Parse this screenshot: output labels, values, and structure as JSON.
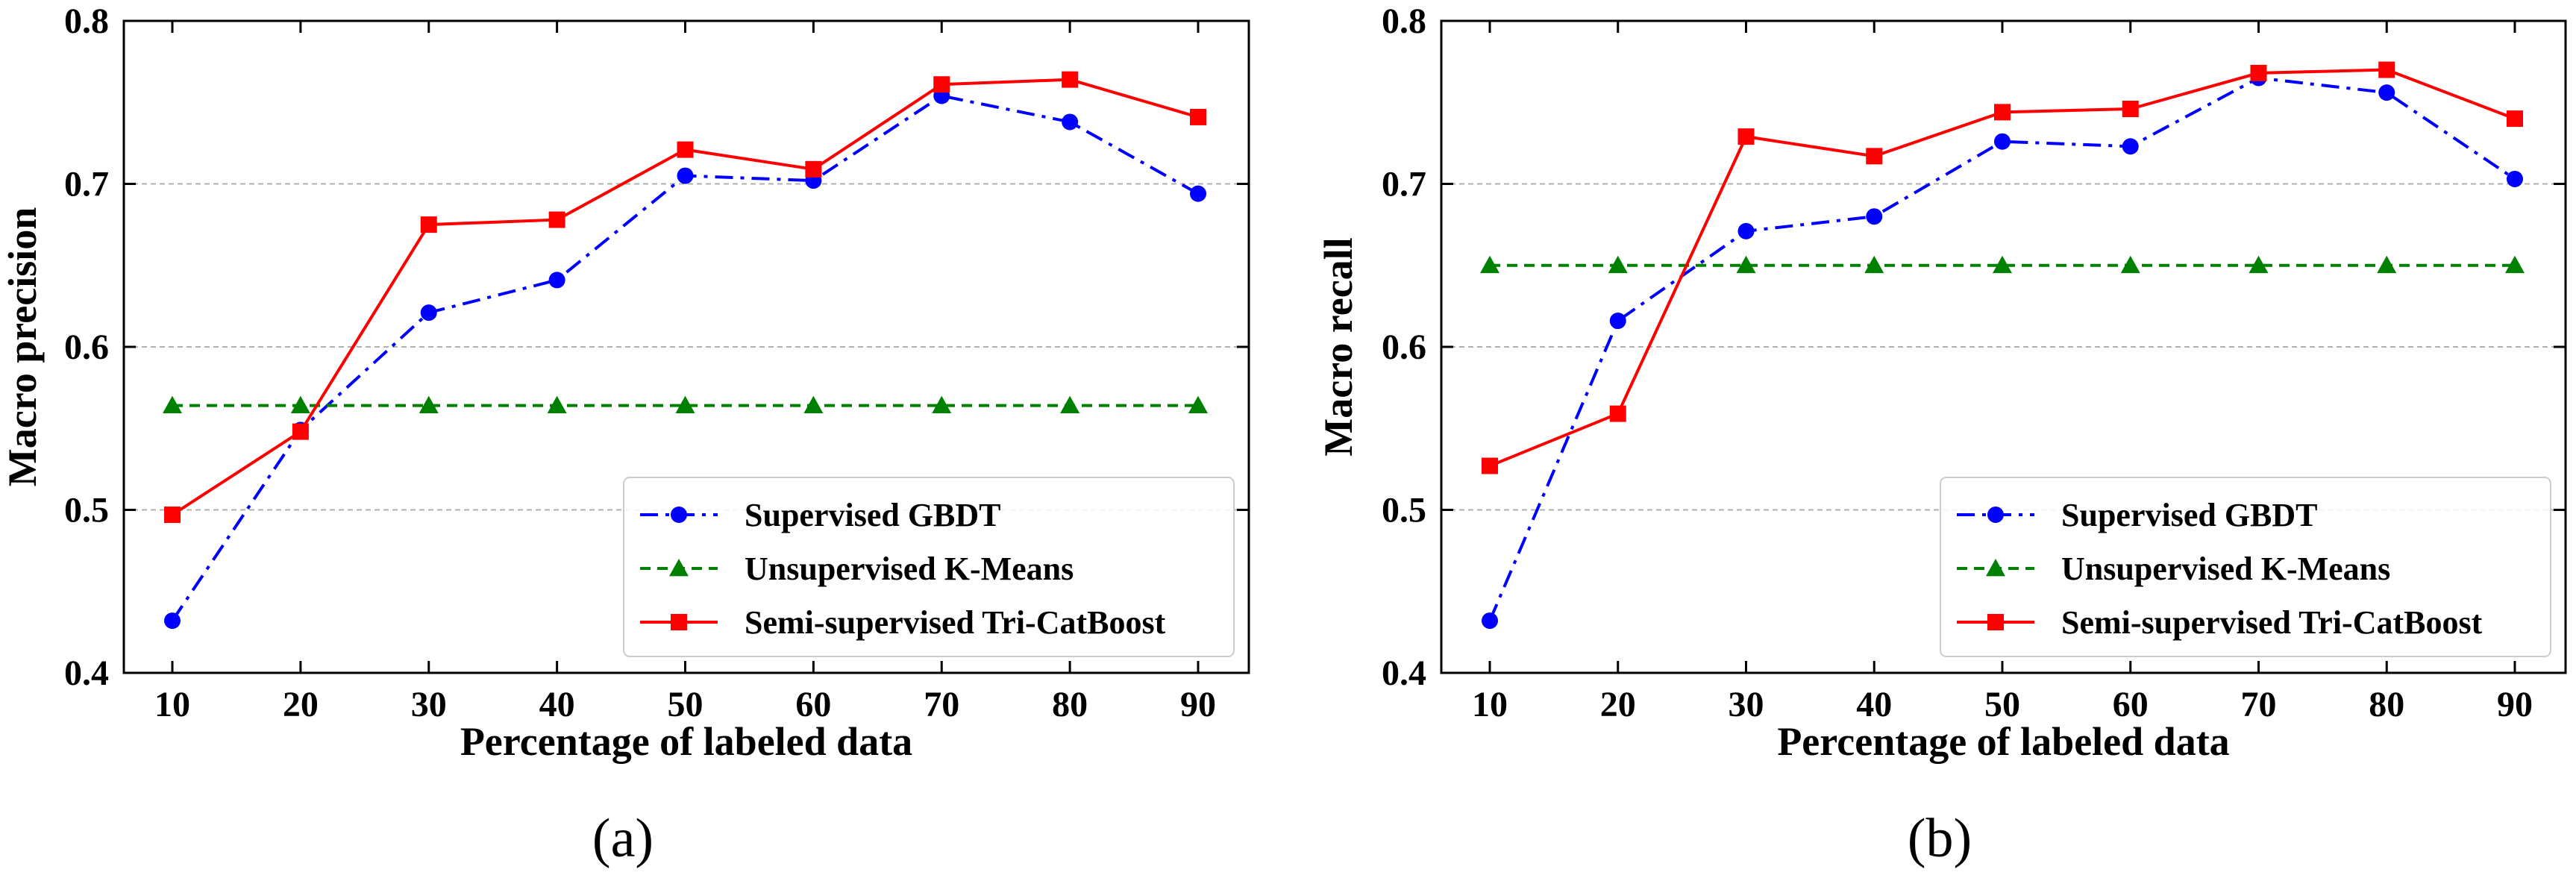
{
  "chart_data": [
    {
      "type": "line",
      "subcaption": "(a)",
      "xlabel": "Percentage of labeled data",
      "ylabel": "Macro precision",
      "x": [
        10,
        20,
        30,
        40,
        50,
        60,
        70,
        80,
        90
      ],
      "ylim": [
        0.4,
        0.8
      ],
      "yticks": [
        "0.4",
        "0.5",
        "0.6",
        "0.7",
        "0.8"
      ],
      "xticks": [
        "10",
        "20",
        "30",
        "40",
        "50",
        "60",
        "70",
        "80",
        "90"
      ],
      "grid": "horizontal",
      "legend_position": "lower-right",
      "series": [
        {
          "name": "Supervised GBDT",
          "color": "#0000ff",
          "style": "dashdot",
          "marker": "circle",
          "values": [
            0.432,
            0.549,
            0.621,
            0.641,
            0.705,
            0.702,
            0.754,
            0.738,
            0.694
          ]
        },
        {
          "name": "Unsupervised K-Means",
          "color": "#008000",
          "style": "dashed",
          "marker": "triangle",
          "values": [
            0.564,
            0.564,
            0.564,
            0.564,
            0.564,
            0.564,
            0.564,
            0.564,
            0.564
          ]
        },
        {
          "name": "Semi-supervised Tri-CatBoost",
          "color": "#ff0000",
          "style": "solid",
          "marker": "square",
          "values": [
            0.497,
            0.548,
            0.675,
            0.678,
            0.721,
            0.709,
            0.761,
            0.764,
            0.741
          ]
        }
      ]
    },
    {
      "type": "line",
      "subcaption": "(b)",
      "xlabel": "Percentage of labeled data",
      "ylabel": "Macro recall",
      "x": [
        10,
        20,
        30,
        40,
        50,
        60,
        70,
        80,
        90
      ],
      "ylim": [
        0.4,
        0.8
      ],
      "yticks": [
        "0.4",
        "0.5",
        "0.6",
        "0.7",
        "0.8"
      ],
      "xticks": [
        "10",
        "20",
        "30",
        "40",
        "50",
        "60",
        "70",
        "80",
        "90"
      ],
      "grid": "horizontal",
      "legend_position": "lower-right",
      "series": [
        {
          "name": "Supervised GBDT",
          "color": "#0000ff",
          "style": "dashdot",
          "marker": "circle",
          "values": [
            0.432,
            0.616,
            0.671,
            0.68,
            0.726,
            0.723,
            0.765,
            0.756,
            0.703
          ]
        },
        {
          "name": "Unsupervised K-Means",
          "color": "#008000",
          "style": "dashed",
          "marker": "triangle",
          "values": [
            0.65,
            0.65,
            0.65,
            0.65,
            0.65,
            0.65,
            0.65,
            0.65,
            0.65
          ]
        },
        {
          "name": "Semi-supervised Tri-CatBoost",
          "color": "#ff0000",
          "style": "solid",
          "marker": "square",
          "values": [
            0.527,
            0.559,
            0.729,
            0.717,
            0.744,
            0.746,
            0.768,
            0.77,
            0.74
          ]
        }
      ]
    }
  ]
}
